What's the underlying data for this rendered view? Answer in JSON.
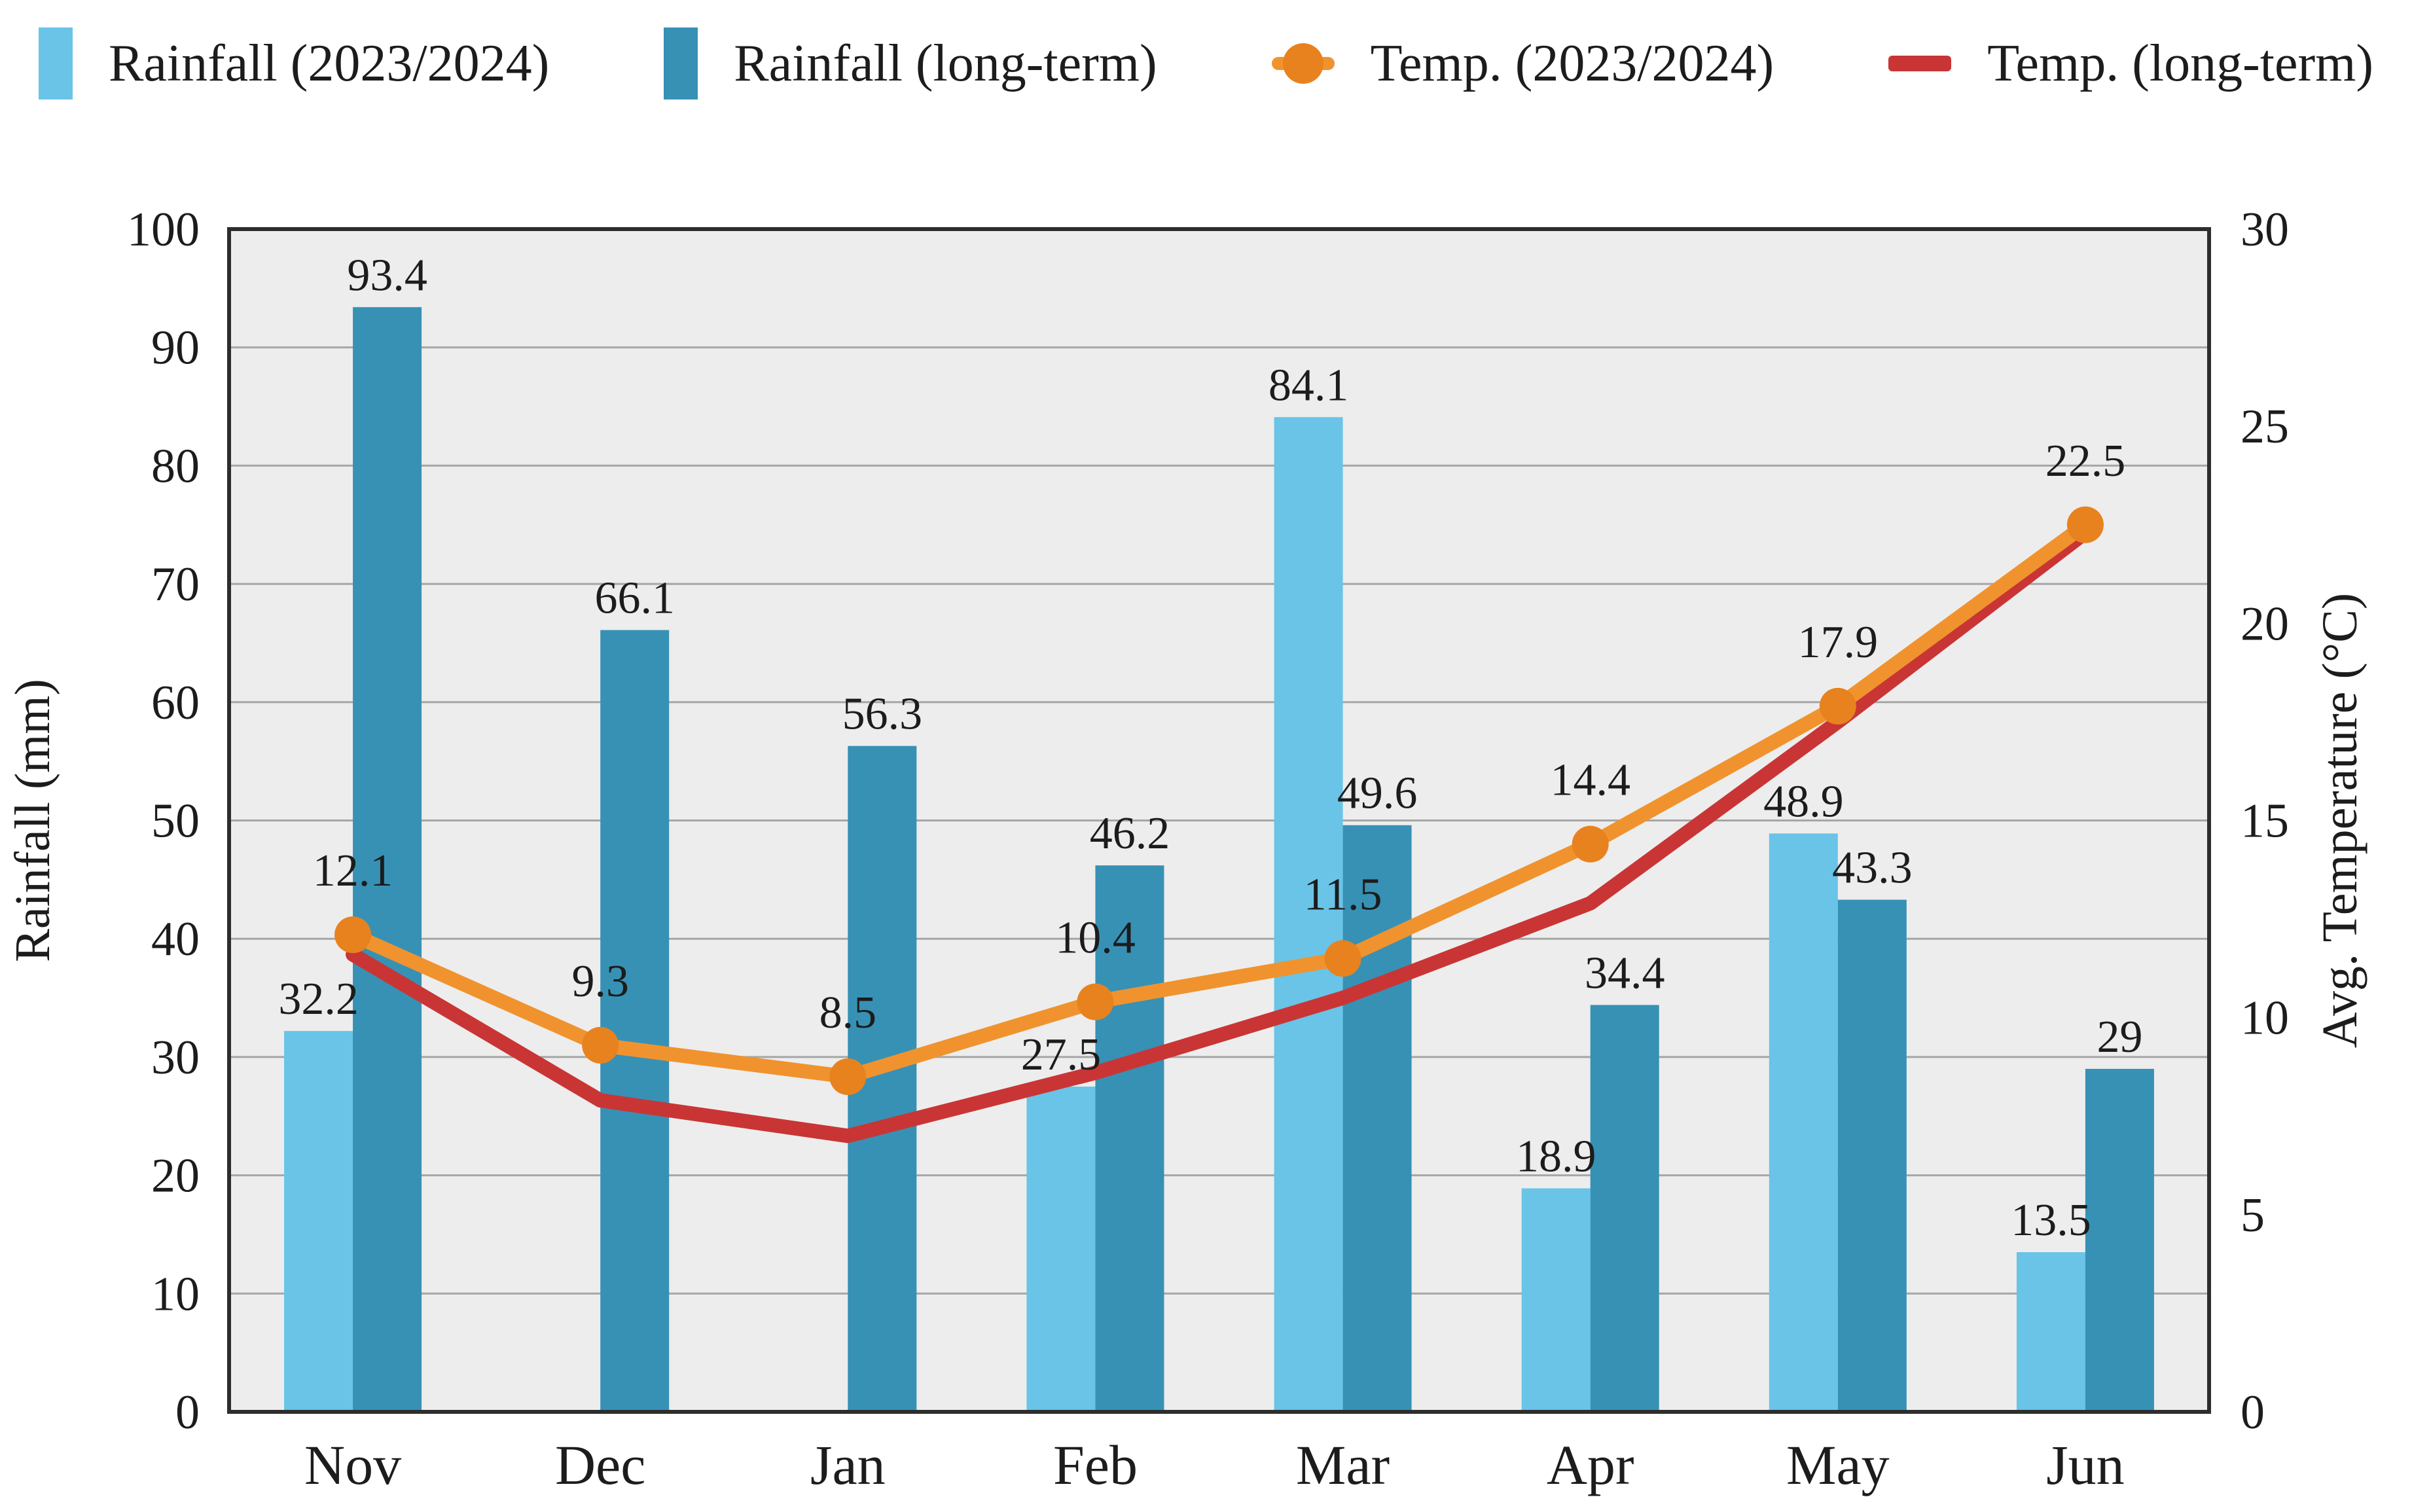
{
  "legend": {
    "items": [
      {
        "label": "Rainfall (2023/2024)",
        "color": "#69c4e7",
        "glyph": "bar-swatch"
      },
      {
        "label": "Rainfall (long-term)",
        "color": "#3791b5",
        "glyph": "bar-swatch"
      },
      {
        "label": "Temp. (2023/2024)",
        "color": "#ef8c28",
        "glyph": "line-with-marker"
      },
      {
        "label": "Temp. (long-term)",
        "color": "#c93535",
        "glyph": "line-dash"
      }
    ]
  },
  "chart_data": {
    "type": "bar+line combo",
    "categories": [
      "Nov",
      "Dec",
      "Jan",
      "Feb",
      "Mar",
      "Apr",
      "May",
      "Jun"
    ],
    "series": [
      {
        "name": "Rainfall (2023/2024)",
        "type": "bar",
        "axis": "left",
        "color": "#69c4e7",
        "values": [
          32.2,
          null,
          null,
          27.5,
          84.1,
          18.9,
          48.9,
          13.5
        ],
        "labels_shown": true
      },
      {
        "name": "Rainfall (long-term)",
        "type": "bar",
        "axis": "left",
        "color": "#3791b5",
        "values": [
          93.4,
          66.1,
          56.3,
          46.2,
          49.6,
          34.4,
          43.3,
          29
        ],
        "labels_shown": true
      },
      {
        "name": "Temp. (2023/2024)",
        "type": "line",
        "axis": "right",
        "color": "#f0932e",
        "marker_color": "#e8821e",
        "marker": true,
        "values": [
          12.1,
          9.3,
          8.5,
          10.4,
          11.5,
          14.4,
          17.9,
          22.5
        ],
        "labels_shown": true
      },
      {
        "name": "Temp. (long-term)",
        "type": "line",
        "axis": "right",
        "color": "#c93535",
        "marker": false,
        "values": [
          11.6,
          7.9,
          7.0,
          8.6,
          10.5,
          12.9,
          17.5,
          22.3
        ],
        "labels_shown": false,
        "note": "values estimated from line position; no data labels in chart"
      }
    ],
    "ylabel_left": "Rainfall (mm)",
    "ylim_left": [
      0,
      100
    ],
    "left_ticks": [
      0,
      10,
      20,
      30,
      40,
      50,
      60,
      70,
      80,
      90,
      100
    ],
    "ylabel_right": "Avg. Temperature (°C)",
    "ylim_right": [
      0,
      30
    ],
    "right_ticks": [
      0,
      5,
      10,
      15,
      20,
      25,
      30
    ],
    "xlabel": "",
    "grid": "horizontal",
    "plot_background": "#ededed",
    "grid_color": "#a6a6a6",
    "frame_color": "#2d2d2d",
    "legend_position": "top"
  }
}
